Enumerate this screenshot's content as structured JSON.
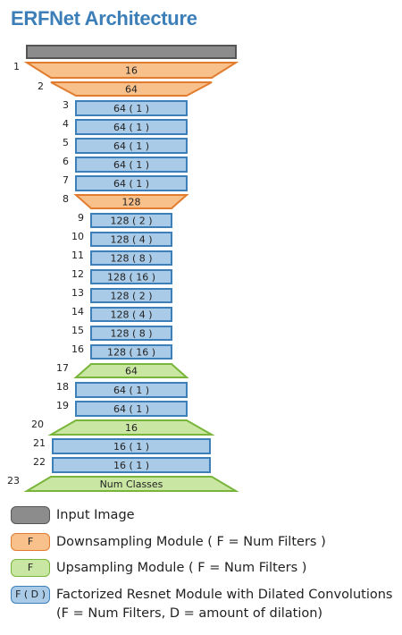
{
  "title": "ERFNet Architecture",
  "colors": {
    "input": {
      "fill": "#8c8c8c",
      "stroke": "#555555"
    },
    "down": {
      "fill": "#f8c08a",
      "stroke": "#e27c2e"
    },
    "up": {
      "fill": "#c9e6a3",
      "stroke": "#79b53b"
    },
    "fr": {
      "fill": "#a9cbe8",
      "stroke": "#3d7fb9"
    }
  },
  "layers": [
    {
      "num": "",
      "type": "input",
      "label": ""
    },
    {
      "num": "1",
      "type": "down",
      "label": "16"
    },
    {
      "num": "2",
      "type": "down",
      "label": "64"
    },
    {
      "num": "3",
      "type": "fr",
      "label": "64 ( 1 )"
    },
    {
      "num": "4",
      "type": "fr",
      "label": "64 ( 1 )"
    },
    {
      "num": "5",
      "type": "fr",
      "label": "64 ( 1 )"
    },
    {
      "num": "6",
      "type": "fr",
      "label": "64 ( 1 )"
    },
    {
      "num": "7",
      "type": "fr",
      "label": "64 ( 1 )"
    },
    {
      "num": "8",
      "type": "down",
      "label": "128"
    },
    {
      "num": "9",
      "type": "fr",
      "label": "128 ( 2 )"
    },
    {
      "num": "10",
      "type": "fr",
      "label": "128 ( 4 )"
    },
    {
      "num": "11",
      "type": "fr",
      "label": "128 ( 8 )"
    },
    {
      "num": "12",
      "type": "fr",
      "label": "128 ( 16 )"
    },
    {
      "num": "13",
      "type": "fr",
      "label": "128 ( 2 )"
    },
    {
      "num": "14",
      "type": "fr",
      "label": "128 ( 4 )"
    },
    {
      "num": "15",
      "type": "fr",
      "label": "128 ( 8 )"
    },
    {
      "num": "16",
      "type": "fr",
      "label": "128 ( 16 )"
    },
    {
      "num": "17",
      "type": "up",
      "label": "64"
    },
    {
      "num": "18",
      "type": "fr",
      "label": "64 ( 1 )"
    },
    {
      "num": "19",
      "type": "fr",
      "label": "64 ( 1 )"
    },
    {
      "num": "20",
      "type": "up",
      "label": "16"
    },
    {
      "num": "21",
      "type": "fr",
      "label": "16 ( 1 )"
    },
    {
      "num": "22",
      "type": "fr",
      "label": "16 ( 1 )"
    },
    {
      "num": "23",
      "type": "up",
      "label": "Num Classes"
    }
  ],
  "legend": {
    "input": {
      "swatch": "",
      "text": "Input Image"
    },
    "down": {
      "swatch": "F",
      "text": "Downsampling Module ( F = Num Filters )"
    },
    "up": {
      "swatch": "F",
      "text": "Upsampling Module ( F = Num Filters )"
    },
    "fr": {
      "swatch": "F ( D )",
      "text": "Factorized Resnet Module with Dilated Convolutions",
      "text2": "(F = Num Filters, D = amount of dilation)"
    }
  }
}
